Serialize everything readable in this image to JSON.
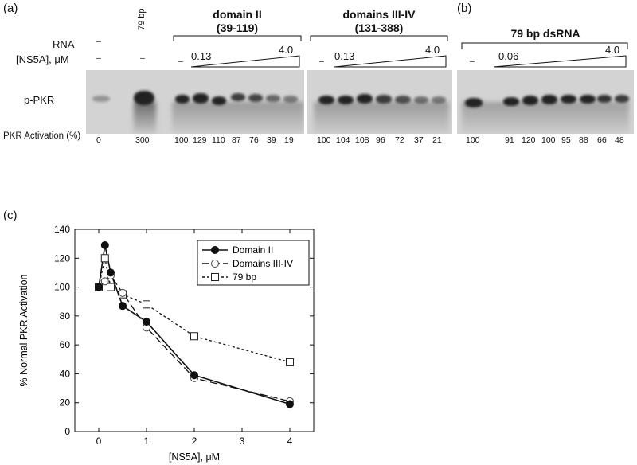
{
  "panels": {
    "a": "(a)",
    "b": "(b)",
    "c": "(c)"
  },
  "row_labels": {
    "rna": "RNA",
    "ns5a": "[NS5A], μM",
    "ppkr": "p-PKR",
    "activation": "PKR Activation (%)"
  },
  "lane_marks": {
    "dash": "–",
    "bp79": "79 bp"
  },
  "groups": [
    {
      "title": "domain II",
      "subtitle": "(39-119)",
      "low": "0.13",
      "high": "4.0"
    },
    {
      "title": "domains III-IV",
      "subtitle": "(131-388)",
      "low": "0.13",
      "high": "4.0"
    },
    {
      "title": "79 bp dsRNA",
      "subtitle": "",
      "low": "0.06",
      "high": "4.0"
    }
  ],
  "activation_values": {
    "control": [
      "0",
      "300"
    ],
    "domain2": [
      "100",
      "129",
      "110",
      "87",
      "76",
      "39",
      "19"
    ],
    "domain34": [
      "100",
      "104",
      "108",
      "96",
      "72",
      "37",
      "21"
    ],
    "bp79": [
      "100",
      "91",
      "120",
      "100",
      "95",
      "88",
      "66",
      "48"
    ]
  },
  "chart_data": {
    "type": "line",
    "xlabel": "[NS5A], μM",
    "ylabel": "% Normal PKR Activation",
    "xlim": [
      -0.5,
      4.5
    ],
    "ylim": [
      0,
      140
    ],
    "xticks": [
      0,
      1,
      2,
      3,
      4
    ],
    "yticks": [
      0,
      20,
      40,
      60,
      80,
      100,
      120,
      140
    ],
    "grid": false,
    "legend_position": "top-right",
    "series": [
      {
        "name": "Domain II",
        "style": "solid",
        "marker": "filled-circle",
        "x": [
          0,
          0.13,
          0.25,
          0.5,
          1,
          2,
          4
        ],
        "y": [
          100,
          129,
          110,
          87,
          76,
          39,
          19
        ]
      },
      {
        "name": "Domains III-IV",
        "style": "long-dash",
        "marker": "open-circle",
        "x": [
          0,
          0.13,
          0.25,
          0.5,
          1,
          2,
          4
        ],
        "y": [
          100,
          104,
          108,
          96,
          72,
          37,
          21
        ]
      },
      {
        "name": "79 bp",
        "style": "short-dash",
        "marker": "open-square",
        "x": [
          0,
          0.13,
          0.25,
          0.5,
          1,
          2,
          4
        ],
        "y": [
          100,
          120,
          100,
          95,
          88,
          66,
          48
        ]
      }
    ]
  }
}
